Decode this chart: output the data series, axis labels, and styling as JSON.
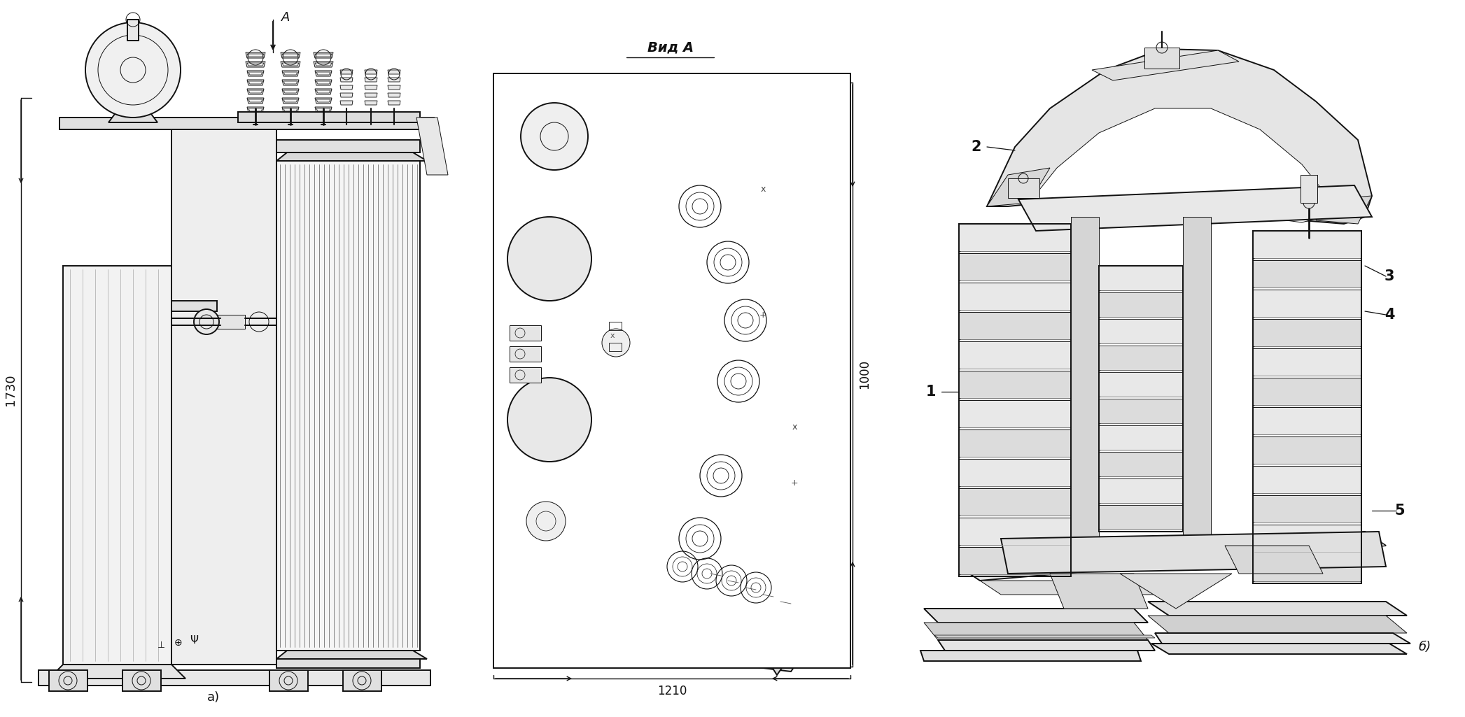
{
  "bg_color": "#ffffff",
  "line_color": "#111111",
  "figsize": [
    20.93,
    10.25
  ],
  "dpi": 100,
  "lw_main": 1.4,
  "lw_thin": 0.7,
  "lw_dim": 1.0,
  "annotations": {
    "view_label": "Вид А",
    "section_a_label": "А",
    "dim_1730": "1730",
    "dim_1000": "1000",
    "dim_1210": "1210",
    "label_a": "а)",
    "label_b": "б)"
  }
}
